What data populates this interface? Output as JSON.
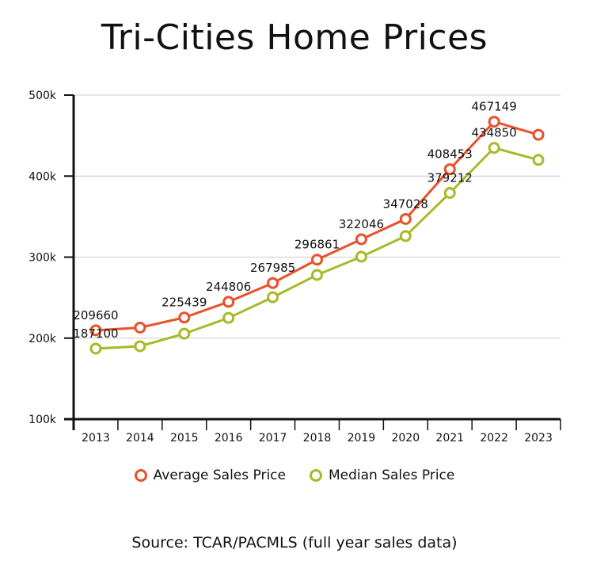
{
  "chart_data": {
    "type": "line",
    "title": "Tri-Cities Home Prices",
    "xlabel": "",
    "ylabel": "",
    "x": [
      "2013",
      "2014",
      "2015",
      "2016",
      "2017",
      "2018",
      "2019",
      "2020",
      "2021",
      "2022",
      "2023"
    ],
    "ylim": [
      100000,
      500000
    ],
    "yticks": [
      100000,
      200000,
      300000,
      400000,
      500000
    ],
    "ytick_labels": [
      "100k",
      "200k",
      "300k",
      "400k",
      "500k"
    ],
    "grid": true,
    "legend_position": "bottom",
    "series": [
      {
        "name": "Average Sales Price",
        "color": "#e8512b",
        "values": [
          209660,
          213000,
          225439,
          244806,
          267985,
          296861,
          322046,
          347028,
          408453,
          467149,
          451000
        ],
        "labels": [
          "209660",
          "",
          "225439",
          "244806",
          "267985",
          "296861",
          "322046",
          "347028",
          "408453",
          "467149",
          ""
        ]
      },
      {
        "name": "Median Sales Price",
        "color": "#a8b92a",
        "values": [
          187100,
          190000,
          205500,
          225000,
          250500,
          278000,
          300500,
          326000,
          379212,
          434850,
          420000
        ],
        "labels": [
          "187100",
          "",
          "",
          "",
          "",
          "",
          "",
          "",
          "379212",
          "434850",
          ""
        ]
      }
    ],
    "source": "Source: TCAR/PACMLS (full year sales data)"
  }
}
